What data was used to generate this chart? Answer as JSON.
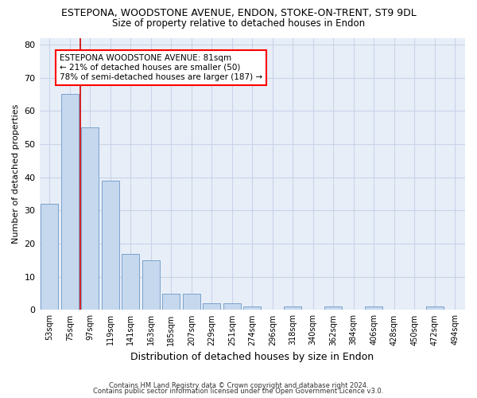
{
  "title1": "ESTEPONA, WOODSTONE AVENUE, ENDON, STOKE-ON-TRENT, ST9 9DL",
  "title2": "Size of property relative to detached houses in Endon",
  "xlabel": "Distribution of detached houses by size in Endon",
  "ylabel": "Number of detached properties",
  "categories": [
    "53sqm",
    "75sqm",
    "97sqm",
    "119sqm",
    "141sqm",
    "163sqm",
    "185sqm",
    "207sqm",
    "229sqm",
    "251sqm",
    "274sqm",
    "296sqm",
    "318sqm",
    "340sqm",
    "362sqm",
    "384sqm",
    "406sqm",
    "428sqm",
    "450sqm",
    "472sqm",
    "494sqm"
  ],
  "values": [
    32,
    65,
    55,
    39,
    17,
    15,
    5,
    5,
    2,
    2,
    1,
    0,
    1,
    0,
    1,
    0,
    1,
    0,
    0,
    1,
    0
  ],
  "bar_color": "#c5d8ee",
  "bar_edge_color": "#7ba3cc",
  "grid_color": "#c8d4e8",
  "bg_color": "#e8eef8",
  "vline_color": "#cc0000",
  "annotation_text_line1": "ESTEPONA WOODSTONE AVENUE: 81sqm",
  "annotation_text_line2": "← 21% of detached houses are smaller (50)",
  "annotation_text_line3": "78% of semi-detached houses are larger (187) →",
  "footer1": "Contains HM Land Registry data © Crown copyright and database right 2024.",
  "footer2": "Contains public sector information licensed under the Open Government Licence v3.0.",
  "ylim": [
    0,
    82
  ],
  "yticks": [
    0,
    10,
    20,
    30,
    40,
    50,
    60,
    70,
    80
  ]
}
